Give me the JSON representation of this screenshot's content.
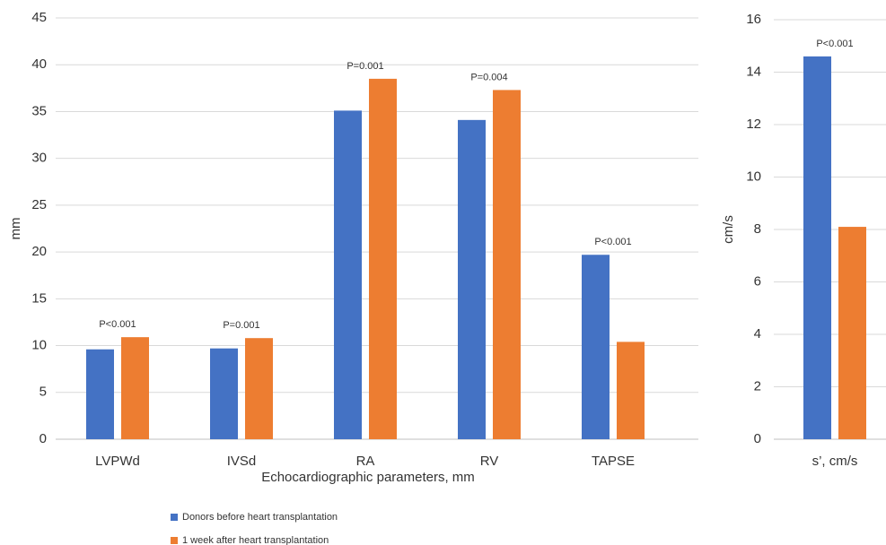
{
  "chart_data": [
    {
      "type": "bar",
      "x_label": "Echocardiographic parameters, mm",
      "y_label": "mm",
      "categories": [
        "LVPWd",
        "IVSd",
        "RA",
        "RV",
        "TAPSE"
      ],
      "series": [
        {
          "name": "Donors before heart transplantation",
          "color": "#4472c4",
          "values": [
            9.6,
            9.7,
            35.1,
            34.1,
            19.7
          ]
        },
        {
          "name": "1 week after heart transplantation",
          "color": "#ed7d31",
          "values": [
            10.9,
            10.8,
            38.5,
            37.3,
            10.4
          ]
        }
      ],
      "annotations": [
        "P<0.001",
        "P=0.001",
        "P=0.001",
        "P=0.004",
        "P<0.001"
      ],
      "ylim": [
        0,
        45
      ],
      "yticks": [
        0,
        5,
        10,
        15,
        20,
        25,
        30,
        35,
        40,
        45
      ],
      "grid": true
    },
    {
      "type": "bar",
      "y_label": "cm/s",
      "categories": [
        "s’, cm/s"
      ],
      "series": [
        {
          "color": "#4472c4",
          "values": [
            14.6
          ]
        },
        {
          "color": "#ed7d31",
          "values": [
            8.1
          ]
        }
      ],
      "annotations": [
        "P<0.001"
      ],
      "ylim": [
        0,
        16
      ],
      "yticks": [
        0,
        2,
        4,
        6,
        8,
        10,
        12,
        14,
        16
      ],
      "grid": true
    }
  ]
}
